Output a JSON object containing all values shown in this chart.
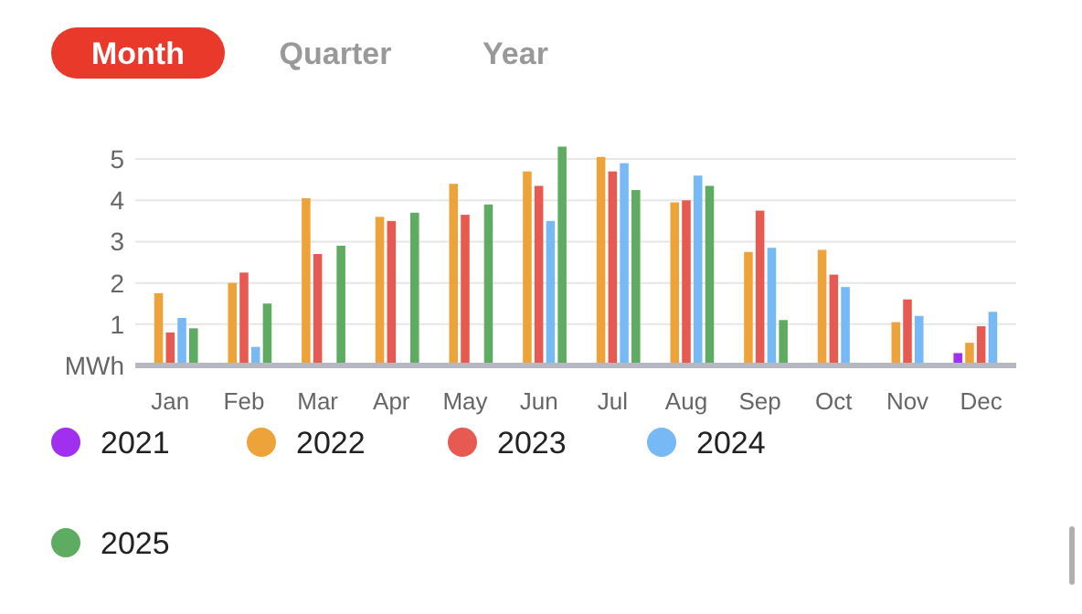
{
  "chart_data": {
    "type": "bar",
    "ylabel": null,
    "categories": [
      "Jan",
      "Feb",
      "Mar",
      "Apr",
      "May",
      "Jun",
      "Jul",
      "Aug",
      "Sep",
      "Oct",
      "Nov",
      "Dec"
    ],
    "series": [
      {
        "name": "2021",
        "color": "#a12ff0",
        "values": [
          null,
          null,
          null,
          null,
          null,
          null,
          null,
          null,
          null,
          null,
          null,
          0.3
        ]
      },
      {
        "name": "2022",
        "color": "#eea33a",
        "values": [
          1.75,
          2.0,
          4.05,
          3.6,
          4.4,
          4.7,
          5.05,
          3.95,
          2.75,
          2.8,
          1.05,
          0.55
        ]
      },
      {
        "name": "2023",
        "color": "#e65a52",
        "values": [
          0.8,
          2.25,
          2.7,
          3.5,
          3.65,
          4.35,
          4.7,
          4.0,
          3.75,
          2.2,
          1.6,
          0.95
        ]
      },
      {
        "name": "2024",
        "color": "#77b9f4",
        "values": [
          1.15,
          0.45,
          null,
          null,
          null,
          3.5,
          4.9,
          4.6,
          2.85,
          1.9,
          1.2,
          1.3
        ]
      },
      {
        "name": "2025",
        "color": "#5eab62",
        "values": [
          0.9,
          1.5,
          2.9,
          3.7,
          3.9,
          5.3,
          4.25,
          4.35,
          1.1,
          null,
          null,
          null
        ]
      }
    ],
    "ylim": [
      0,
      5.4
    ],
    "yticks": [
      {
        "value": 0,
        "label": "MWh"
      },
      1,
      2,
      3,
      4,
      5
    ],
    "grid": "y",
    "legend": "bottom",
    "marker": "circle",
    "annotations": [
      "Month",
      "Quarter",
      "Year"
    ]
  }
}
